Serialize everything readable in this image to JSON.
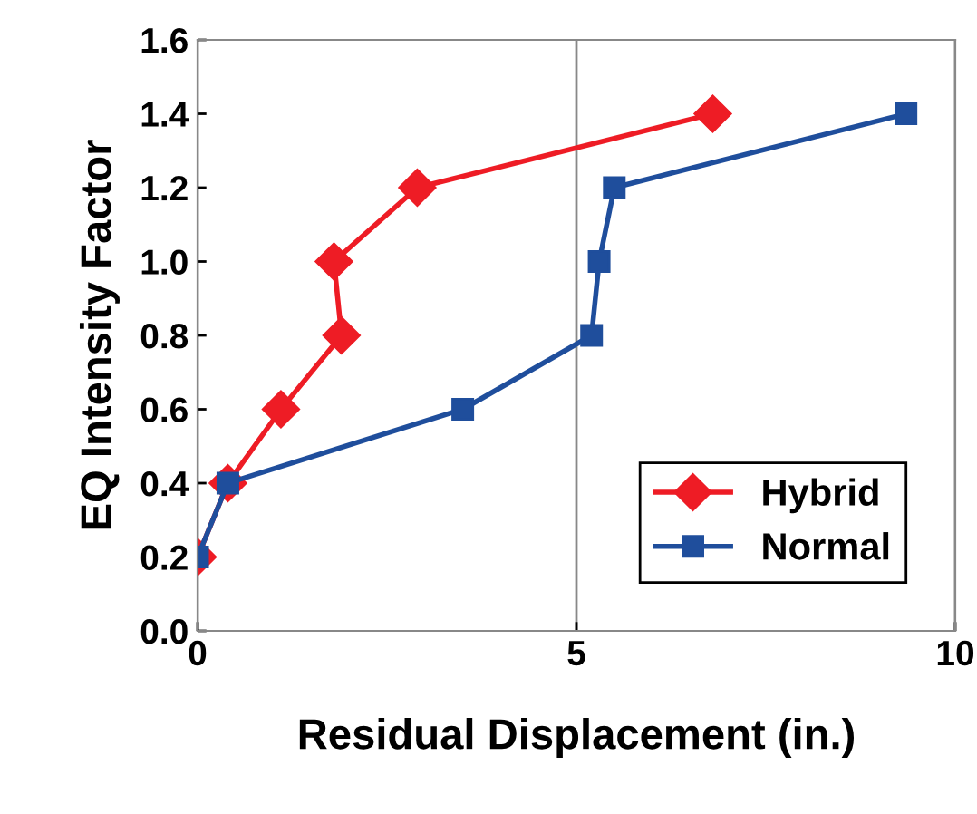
{
  "chart_data": {
    "type": "line",
    "xlabel": "Residual Displacement (in.)",
    "ylabel": "EQ Intensity Factor",
    "xlim": [
      0,
      10
    ],
    "xticks": [
      0,
      5,
      10
    ],
    "ylim": [
      0,
      1.6
    ],
    "yticks": [
      {
        "value": 0,
        "label": "0.0"
      },
      {
        "value": 0.2,
        "label": "0.2"
      },
      {
        "value": 0.4,
        "label": "0.4"
      },
      {
        "value": 0.6,
        "label": "0.6"
      },
      {
        "value": 0.8,
        "label": "0.8"
      },
      {
        "value": 1.0,
        "label": "1.0"
      },
      {
        "value": 1.2,
        "label": "1.2"
      },
      {
        "value": 1.4,
        "label": "1.4"
      },
      {
        "value": 1.6,
        "label": "1.6"
      }
    ],
    "grid": "x",
    "legend": "bottom right",
    "series": [
      {
        "name": "Hybrid",
        "color": "#ee1c25",
        "marker": "diamond",
        "x": [
          0,
          0.4,
          1.1,
          1.9,
          1.8,
          2.9,
          6.8
        ],
        "values": [
          0.2,
          0.4,
          0.6,
          0.8,
          1.0,
          1.2,
          1.4
        ]
      },
      {
        "name": "Normal",
        "color": "#1f4e9c",
        "marker": "square",
        "x": [
          0,
          0.4,
          3.5,
          5.2,
          5.3,
          5.5,
          9.35
        ],
        "values": [
          0.2,
          0.4,
          0.6,
          0.8,
          1.0,
          1.2,
          1.4
        ]
      }
    ]
  }
}
